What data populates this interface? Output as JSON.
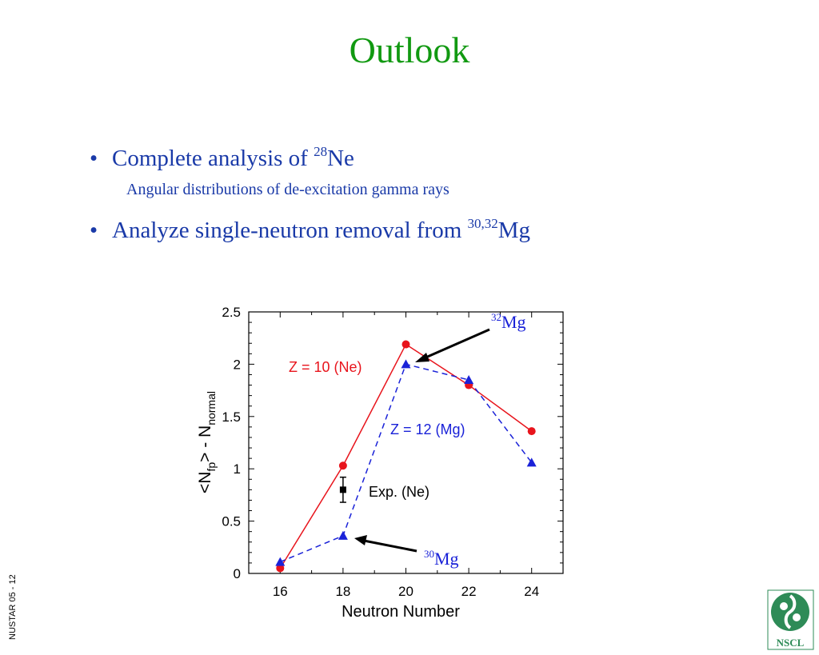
{
  "slide": {
    "title": "Outlook",
    "bullets": [
      {
        "text": "Complete analysis of ",
        "sup": "28",
        "tail": "Ne"
      },
      {
        "text": "Analyze single-neutron removal from ",
        "sup": "30,32",
        "tail": "Mg"
      }
    ],
    "sub_bullet": "Angular distributions of de-excitation gamma rays",
    "footer_tag": "NUSTAR 05 - 12",
    "logo_text": "NSCL"
  },
  "chart_data": {
    "type": "line",
    "xlabel": "Neutron Number",
    "ylabel": "<Nfp> - Nnormal",
    "ylabel_parts": {
      "pre": "<N",
      "sub1": "fp",
      "mid": "> - N",
      "sub2": "normal"
    },
    "xlim": [
      15,
      25
    ],
    "ylim": [
      0,
      2.5
    ],
    "xticks": [
      16,
      18,
      20,
      22,
      24
    ],
    "yticks": [
      0,
      0.5,
      1,
      1.5,
      2,
      2.5
    ],
    "ytick_labels": [
      "0",
      "0.5",
      "1",
      "1.5",
      "2",
      "2.5"
    ],
    "series": [
      {
        "name": "Z = 10  (Ne)",
        "color": "#e8141c",
        "dash": "solid",
        "marker": "circle",
        "x": [
          16,
          18,
          20,
          22,
          24
        ],
        "y": [
          0.05,
          1.03,
          2.19,
          1.8,
          1.36
        ]
      },
      {
        "name": "Z = 12  (Mg)",
        "color": "#1a22d8",
        "dash": "dashed",
        "marker": "triangle",
        "x": [
          16,
          18,
          20,
          22,
          24
        ],
        "y": [
          0.11,
          0.36,
          2.0,
          1.85,
          1.06
        ]
      }
    ],
    "experiment": {
      "name": "Exp. (Ne)",
      "x": 18,
      "y": 0.8,
      "err": 0.12,
      "color": "#000000"
    },
    "annotations": [
      {
        "sup": "32",
        "text": "Mg",
        "x": 20,
        "y": 2.0
      },
      {
        "sup": "30",
        "text": "Mg",
        "x": 18,
        "y": 0.36
      }
    ]
  }
}
